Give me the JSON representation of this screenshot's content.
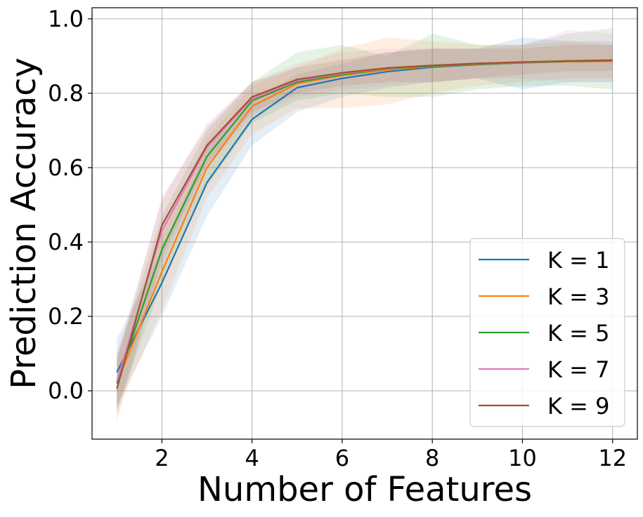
{
  "chart_data": {
    "type": "line",
    "xlabel": "Number of Features",
    "ylabel": "Prediction Accuracy",
    "xlim": [
      0.45,
      12.55
    ],
    "ylim": [
      -0.13,
      1.03
    ],
    "xticks": [
      2,
      4,
      6,
      8,
      10,
      12
    ],
    "yticks": [
      0.0,
      0.2,
      0.4,
      0.6,
      0.8,
      1.0
    ],
    "xtick_labels": [
      "2",
      "4",
      "6",
      "8",
      "10",
      "12"
    ],
    "ytick_labels": [
      "0.0",
      "0.2",
      "0.4",
      "0.6",
      "0.8",
      "1.0"
    ],
    "grid": true,
    "legend_position": "lower-right",
    "x": [
      1,
      2,
      3,
      4,
      5,
      6,
      7,
      8,
      9,
      10,
      11,
      12
    ],
    "series": [
      {
        "name": "K = 1",
        "color": "#1f77b4",
        "values": [
          0.05,
          0.29,
          0.56,
          0.73,
          0.815,
          0.84,
          0.858,
          0.87,
          0.877,
          0.882,
          0.885,
          0.886
        ],
        "lower": [
          -0.04,
          0.2,
          0.47,
          0.66,
          0.75,
          0.79,
          0.815,
          0.83,
          0.84,
          0.81,
          0.83,
          0.83
        ],
        "upper": [
          0.14,
          0.38,
          0.65,
          0.78,
          0.85,
          0.88,
          0.91,
          0.92,
          0.92,
          0.95,
          0.94,
          0.94
        ]
      },
      {
        "name": "K = 3",
        "color": "#ff7f0e",
        "values": [
          0.02,
          0.32,
          0.6,
          0.765,
          0.826,
          0.848,
          0.863,
          0.872,
          0.878,
          0.882,
          0.885,
          0.886
        ],
        "lower": [
          -0.06,
          0.22,
          0.52,
          0.69,
          0.76,
          0.76,
          0.77,
          0.8,
          0.82,
          0.83,
          0.84,
          0.84
        ],
        "upper": [
          0.1,
          0.42,
          0.68,
          0.82,
          0.87,
          0.92,
          0.95,
          0.94,
          0.93,
          0.93,
          0.94,
          0.93
        ]
      },
      {
        "name": "K = 5",
        "color": "#2ca02c",
        "values": [
          0.02,
          0.38,
          0.63,
          0.78,
          0.83,
          0.85,
          0.866,
          0.873,
          0.879,
          0.882,
          0.886,
          0.887
        ],
        "lower": [
          -0.05,
          0.29,
          0.55,
          0.72,
          0.78,
          0.8,
          0.79,
          0.79,
          0.81,
          0.82,
          0.82,
          0.81
        ],
        "upper": [
          0.09,
          0.47,
          0.7,
          0.83,
          0.91,
          0.93,
          0.9,
          0.96,
          0.93,
          0.93,
          0.96,
          0.975
        ]
      },
      {
        "name": "K = 7",
        "color": "#e377c2",
        "values": [
          0.025,
          0.43,
          0.655,
          0.785,
          0.834,
          0.853,
          0.867,
          0.875,
          0.88,
          0.883,
          0.887,
          0.888
        ],
        "lower": [
          -0.05,
          0.34,
          0.6,
          0.74,
          0.79,
          0.81,
          0.82,
          0.83,
          0.84,
          0.84,
          0.83,
          0.83
        ],
        "upper": [
          0.1,
          0.51,
          0.72,
          0.83,
          0.88,
          0.91,
          0.92,
          0.92,
          0.92,
          0.93,
          0.97,
          0.96
        ]
      },
      {
        "name": "K = 9",
        "color": "#a0522d",
        "values": [
          0.005,
          0.445,
          0.66,
          0.79,
          0.837,
          0.855,
          0.868,
          0.875,
          0.88,
          0.884,
          0.887,
          0.889
        ],
        "lower": [
          -0.08,
          0.36,
          0.61,
          0.75,
          0.8,
          0.82,
          0.83,
          0.83,
          0.84,
          0.85,
          0.86,
          0.86
        ],
        "upper": [
          0.08,
          0.52,
          0.71,
          0.83,
          0.87,
          0.89,
          0.91,
          0.92,
          0.92,
          0.92,
          0.93,
          0.93
        ]
      }
    ]
  }
}
